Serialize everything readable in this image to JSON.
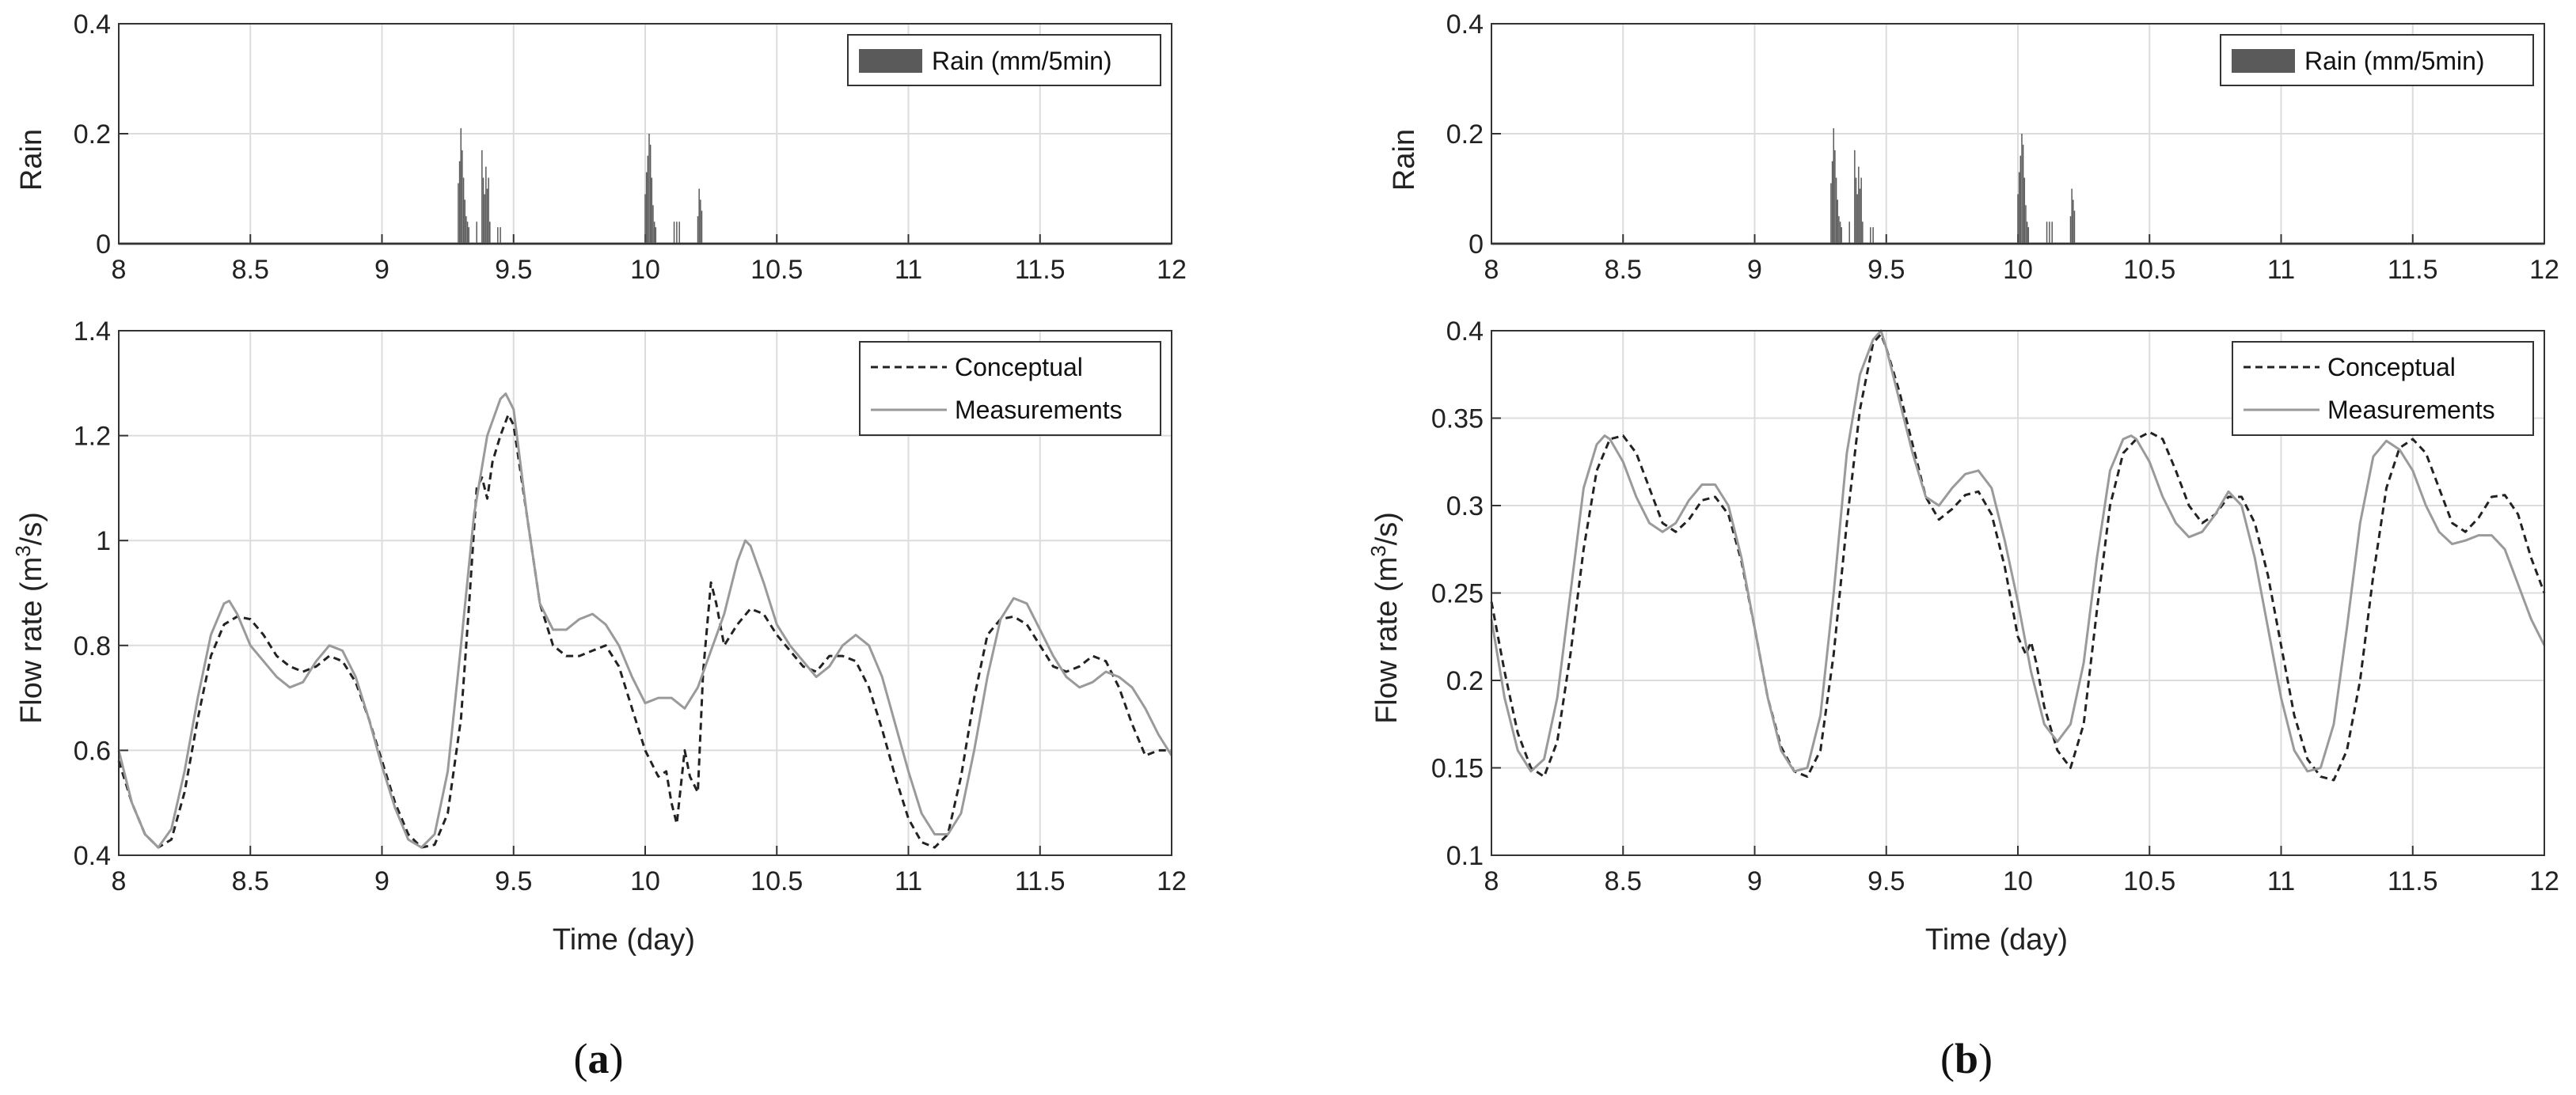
{
  "chart_data": [
    {
      "panel": "a",
      "caption": {
        "pre": "(",
        "letter": "a",
        "post": ")"
      },
      "rain": {
        "type": "bar",
        "ylabel": "Rain",
        "xlim": [
          8,
          12
        ],
        "ylim": [
          0,
          0.4
        ],
        "xticks": [
          "8",
          "8.5",
          "9",
          "9.5",
          "10",
          "10.5",
          "11",
          "11.5",
          "12"
        ],
        "yticks": [
          "0",
          "0.2",
          "0.4"
        ],
        "legend": "Rain (mm/5min)",
        "legend_position": "top-right",
        "grid": true,
        "bar_color": "#5a5a5a",
        "x": [
          9.29,
          9.295,
          9.3,
          9.305,
          9.31,
          9.315,
          9.32,
          9.325,
          9.33,
          9.36,
          9.38,
          9.385,
          9.39,
          9.395,
          9.4,
          9.405,
          9.41,
          9.44,
          9.45,
          10.0,
          10.005,
          10.01,
          10.015,
          10.02,
          10.025,
          10.03,
          10.035,
          10.04,
          10.11,
          10.12,
          10.13,
          10.2,
          10.205,
          10.21,
          10.215
        ],
        "values": [
          0.11,
          0.15,
          0.21,
          0.17,
          0.12,
          0.08,
          0.05,
          0.04,
          0.03,
          0.04,
          0.17,
          0.12,
          0.09,
          0.14,
          0.1,
          0.12,
          0.04,
          0.03,
          0.03,
          0.09,
          0.13,
          0.16,
          0.2,
          0.18,
          0.12,
          0.07,
          0.04,
          0.03,
          0.04,
          0.04,
          0.04,
          0.05,
          0.1,
          0.08,
          0.06
        ]
      },
      "flow": {
        "type": "line",
        "xlabel": "Time (day)",
        "ylabel_base": "Flow rate (m",
        "ylabel_sup": "3",
        "ylabel_tail": "/s)",
        "xlim": [
          8,
          12
        ],
        "ylim": [
          0.4,
          1.4
        ],
        "xticks": [
          "8",
          "8.5",
          "9",
          "9.5",
          "10",
          "10.5",
          "11",
          "11.5",
          "12"
        ],
        "yticks": [
          "0.4",
          "0.6",
          "0.8",
          "1",
          "1.2",
          "1.4"
        ],
        "legend_position": "top-right",
        "grid": true,
        "series": [
          {
            "name": "Conceptual",
            "style": "dashed",
            "color": "#222222",
            "x": [
              8.0,
              8.05,
              8.1,
              8.15,
              8.2,
              8.25,
              8.3,
              8.35,
              8.4,
              8.45,
              8.5,
              8.55,
              8.6,
              8.65,
              8.7,
              8.75,
              8.8,
              8.85,
              8.9,
              8.95,
              9.0,
              9.05,
              9.1,
              9.15,
              9.2,
              9.25,
              9.3,
              9.33,
              9.36,
              9.38,
              9.4,
              9.42,
              9.45,
              9.48,
              9.5,
              9.55,
              9.6,
              9.65,
              9.7,
              9.75,
              9.8,
              9.85,
              9.9,
              9.95,
              10.0,
              10.05,
              10.08,
              10.1,
              10.12,
              10.15,
              10.17,
              10.2,
              10.22,
              10.25,
              10.27,
              10.3,
              10.35,
              10.4,
              10.45,
              10.5,
              10.55,
              10.6,
              10.65,
              10.7,
              10.75,
              10.8,
              10.85,
              10.9,
              10.95,
              11.0,
              11.05,
              11.1,
              11.15,
              11.2,
              11.25,
              11.3,
              11.35,
              11.4,
              11.45,
              11.5,
              11.55,
              11.6,
              11.65,
              11.7,
              11.75,
              11.8,
              11.85,
              11.9,
              11.95,
              12.0
            ],
            "y": [
              0.58,
              0.5,
              0.44,
              0.415,
              0.43,
              0.52,
              0.66,
              0.78,
              0.84,
              0.855,
              0.85,
              0.82,
              0.78,
              0.76,
              0.75,
              0.76,
              0.78,
              0.77,
              0.73,
              0.66,
              0.58,
              0.5,
              0.44,
              0.415,
              0.42,
              0.48,
              0.66,
              0.87,
              1.1,
              1.12,
              1.08,
              1.15,
              1.2,
              1.24,
              1.22,
              1.05,
              0.88,
              0.8,
              0.78,
              0.78,
              0.79,
              0.8,
              0.76,
              0.68,
              0.6,
              0.55,
              0.56,
              0.5,
              0.46,
              0.6,
              0.55,
              0.52,
              0.75,
              0.92,
              0.88,
              0.8,
              0.84,
              0.87,
              0.86,
              0.82,
              0.79,
              0.76,
              0.75,
              0.78,
              0.78,
              0.77,
              0.72,
              0.64,
              0.55,
              0.47,
              0.425,
              0.415,
              0.44,
              0.55,
              0.7,
              0.82,
              0.85,
              0.855,
              0.84,
              0.8,
              0.76,
              0.75,
              0.76,
              0.78,
              0.77,
              0.72,
              0.65,
              0.59,
              0.6,
              0.6
            ]
          },
          {
            "name": "Measurements",
            "style": "solid",
            "color": "#9a9a9a",
            "x": [
              8.0,
              8.05,
              8.1,
              8.15,
              8.2,
              8.25,
              8.3,
              8.35,
              8.4,
              8.42,
              8.45,
              8.5,
              8.55,
              8.6,
              8.65,
              8.7,
              8.75,
              8.8,
              8.85,
              8.9,
              8.95,
              9.0,
              9.05,
              9.1,
              9.15,
              9.2,
              9.25,
              9.3,
              9.35,
              9.4,
              9.45,
              9.47,
              9.5,
              9.55,
              9.6,
              9.65,
              9.7,
              9.75,
              9.8,
              9.85,
              9.9,
              9.95,
              10.0,
              10.05,
              10.1,
              10.15,
              10.2,
              10.25,
              10.3,
              10.35,
              10.38,
              10.4,
              10.45,
              10.5,
              10.55,
              10.6,
              10.65,
              10.7,
              10.75,
              10.8,
              10.85,
              10.9,
              10.95,
              11.0,
              11.05,
              11.1,
              11.15,
              11.2,
              11.25,
              11.3,
              11.35,
              11.4,
              11.45,
              11.5,
              11.55,
              11.6,
              11.65,
              11.7,
              11.75,
              11.8,
              11.85,
              11.9,
              11.95,
              12.0
            ],
            "y": [
              0.6,
              0.5,
              0.44,
              0.415,
              0.45,
              0.56,
              0.7,
              0.82,
              0.88,
              0.885,
              0.86,
              0.8,
              0.77,
              0.74,
              0.72,
              0.73,
              0.77,
              0.8,
              0.79,
              0.74,
              0.66,
              0.57,
              0.49,
              0.43,
              0.415,
              0.44,
              0.56,
              0.8,
              1.05,
              1.2,
              1.27,
              1.28,
              1.25,
              1.05,
              0.88,
              0.83,
              0.83,
              0.85,
              0.86,
              0.84,
              0.8,
              0.74,
              0.69,
              0.7,
              0.7,
              0.68,
              0.72,
              0.79,
              0.86,
              0.96,
              1.0,
              0.99,
              0.92,
              0.84,
              0.8,
              0.77,
              0.74,
              0.76,
              0.8,
              0.82,
              0.8,
              0.74,
              0.65,
              0.56,
              0.48,
              0.44,
              0.44,
              0.48,
              0.6,
              0.74,
              0.85,
              0.89,
              0.88,
              0.83,
              0.78,
              0.74,
              0.72,
              0.73,
              0.75,
              0.74,
              0.72,
              0.68,
              0.63,
              0.59
            ]
          }
        ]
      }
    },
    {
      "panel": "b",
      "caption": {
        "pre": "(",
        "letter": "b",
        "post": ")"
      },
      "rain": {
        "type": "bar",
        "ylabel": "Rain",
        "xlim": [
          8,
          12
        ],
        "ylim": [
          0,
          0.4
        ],
        "xticks": [
          "8",
          "8.5",
          "9",
          "9.5",
          "10",
          "10.5",
          "11",
          "11.5",
          "12"
        ],
        "yticks": [
          "0",
          "0.2",
          "0.4"
        ],
        "legend": "Rain (mm/5min)",
        "legend_position": "top-right",
        "grid": true,
        "bar_color": "#5a5a5a",
        "x": [
          9.29,
          9.295,
          9.3,
          9.305,
          9.31,
          9.315,
          9.32,
          9.325,
          9.33,
          9.36,
          9.38,
          9.385,
          9.39,
          9.395,
          9.4,
          9.405,
          9.41,
          9.44,
          9.45,
          10.0,
          10.005,
          10.01,
          10.015,
          10.02,
          10.025,
          10.03,
          10.035,
          10.04,
          10.11,
          10.12,
          10.13,
          10.2,
          10.205,
          10.21,
          10.215
        ],
        "values": [
          0.11,
          0.15,
          0.21,
          0.17,
          0.12,
          0.08,
          0.05,
          0.04,
          0.03,
          0.04,
          0.17,
          0.12,
          0.09,
          0.14,
          0.1,
          0.12,
          0.04,
          0.03,
          0.03,
          0.09,
          0.13,
          0.16,
          0.2,
          0.18,
          0.12,
          0.07,
          0.04,
          0.03,
          0.04,
          0.04,
          0.04,
          0.05,
          0.1,
          0.08,
          0.06
        ]
      },
      "flow": {
        "type": "line",
        "xlabel": "Time (day)",
        "ylabel_base": "Flow rate (m",
        "ylabel_sup": "3",
        "ylabel_tail": "/s)",
        "xlim": [
          8,
          12
        ],
        "ylim": [
          0.1,
          0.4
        ],
        "xticks": [
          "8",
          "8.5",
          "9",
          "9.5",
          "10",
          "10.5",
          "11",
          "11.5",
          "12"
        ],
        "yticks": [
          "0.1",
          "0.15",
          "0.2",
          "0.25",
          "0.3",
          "0.35",
          "0.4"
        ],
        "legend_position": "top-right",
        "grid": true,
        "series": [
          {
            "name": "Conceptual",
            "style": "dashed",
            "color": "#222222",
            "x": [
              8.0,
              8.05,
              8.1,
              8.15,
              8.2,
              8.25,
              8.3,
              8.35,
              8.4,
              8.45,
              8.5,
              8.55,
              8.6,
              8.65,
              8.7,
              8.75,
              8.8,
              8.85,
              8.9,
              8.95,
              9.0,
              9.05,
              9.1,
              9.15,
              9.2,
              9.25,
              9.3,
              9.35,
              9.4,
              9.45,
              9.48,
              9.5,
              9.55,
              9.6,
              9.65,
              9.7,
              9.75,
              9.8,
              9.85,
              9.9,
              9.95,
              10.0,
              10.03,
              10.05,
              10.07,
              10.1,
              10.15,
              10.2,
              10.25,
              10.3,
              10.35,
              10.4,
              10.45,
              10.5,
              10.55,
              10.6,
              10.65,
              10.7,
              10.75,
              10.8,
              10.85,
              10.9,
              10.95,
              11.0,
              11.05,
              11.1,
              11.15,
              11.2,
              11.25,
              11.3,
              11.35,
              11.4,
              11.45,
              11.5,
              11.55,
              11.6,
              11.65,
              11.7,
              11.75,
              11.8,
              11.85,
              11.9,
              11.95,
              12.0
            ],
            "y": [
              0.245,
              0.205,
              0.17,
              0.15,
              0.145,
              0.165,
              0.215,
              0.275,
              0.32,
              0.338,
              0.34,
              0.33,
              0.31,
              0.29,
              0.285,
              0.292,
              0.303,
              0.305,
              0.295,
              0.268,
              0.23,
              0.19,
              0.162,
              0.148,
              0.145,
              0.16,
              0.215,
              0.29,
              0.355,
              0.393,
              0.398,
              0.39,
              0.365,
              0.335,
              0.305,
              0.292,
              0.298,
              0.306,
              0.308,
              0.295,
              0.265,
              0.225,
              0.215,
              0.222,
              0.21,
              0.185,
              0.16,
              0.15,
              0.175,
              0.24,
              0.3,
              0.33,
              0.338,
              0.342,
              0.338,
              0.32,
              0.3,
              0.29,
              0.295,
              0.305,
              0.305,
              0.29,
              0.26,
              0.22,
              0.18,
              0.155,
              0.145,
              0.143,
              0.16,
              0.2,
              0.26,
              0.31,
              0.333,
              0.338,
              0.33,
              0.31,
              0.29,
              0.285,
              0.293,
              0.305,
              0.306,
              0.295,
              0.27,
              0.25
            ]
          },
          {
            "name": "Measurements",
            "style": "solid",
            "color": "#9a9a9a",
            "x": [
              8.0,
              8.05,
              8.1,
              8.15,
              8.2,
              8.25,
              8.3,
              8.35,
              8.4,
              8.43,
              8.45,
              8.5,
              8.55,
              8.6,
              8.65,
              8.7,
              8.75,
              8.8,
              8.85,
              8.9,
              8.95,
              9.0,
              9.05,
              9.1,
              9.15,
              9.2,
              9.25,
              9.3,
              9.35,
              9.4,
              9.45,
              9.48,
              9.5,
              9.55,
              9.6,
              9.65,
              9.7,
              9.75,
              9.8,
              9.85,
              9.9,
              9.95,
              10.0,
              10.05,
              10.1,
              10.15,
              10.2,
              10.25,
              10.3,
              10.35,
              10.4,
              10.43,
              10.45,
              10.5,
              10.55,
              10.6,
              10.65,
              10.7,
              10.75,
              10.8,
              10.85,
              10.9,
              10.95,
              11.0,
              11.05,
              11.1,
              11.15,
              11.2,
              11.25,
              11.3,
              11.35,
              11.4,
              11.45,
              11.5,
              11.55,
              11.6,
              11.65,
              11.7,
              11.75,
              11.8,
              11.85,
              11.9,
              11.95,
              12.0
            ],
            "y": [
              0.235,
              0.19,
              0.16,
              0.148,
              0.155,
              0.19,
              0.25,
              0.31,
              0.335,
              0.34,
              0.338,
              0.325,
              0.305,
              0.29,
              0.285,
              0.29,
              0.303,
              0.312,
              0.312,
              0.3,
              0.27,
              0.23,
              0.19,
              0.16,
              0.148,
              0.15,
              0.18,
              0.25,
              0.33,
              0.375,
              0.395,
              0.4,
              0.39,
              0.36,
              0.33,
              0.305,
              0.3,
              0.31,
              0.318,
              0.32,
              0.31,
              0.28,
              0.245,
              0.205,
              0.175,
              0.165,
              0.175,
              0.21,
              0.27,
              0.32,
              0.338,
              0.34,
              0.338,
              0.325,
              0.305,
              0.29,
              0.282,
              0.285,
              0.295,
              0.308,
              0.3,
              0.27,
              0.23,
              0.19,
              0.16,
              0.148,
              0.15,
              0.175,
              0.23,
              0.29,
              0.328,
              0.337,
              0.332,
              0.32,
              0.3,
              0.285,
              0.278,
              0.28,
              0.283,
              0.283,
              0.275,
              0.255,
              0.235,
              0.22
            ]
          }
        ]
      }
    }
  ]
}
